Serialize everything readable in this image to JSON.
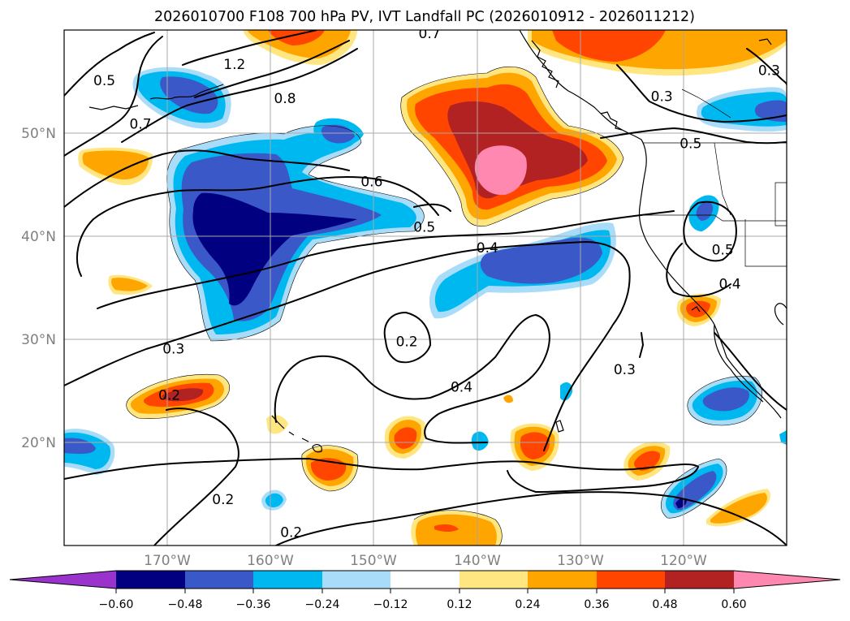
{
  "title": "2026010700 F108 700 hPa PV, IVT Landfall PC (2026010912 - 2026011212)",
  "map": {
    "lon_range": [
      -180,
      -110
    ],
    "lat_range": [
      10,
      60
    ],
    "lon_ticks": [
      {
        "lon": -170,
        "label": "170°W"
      },
      {
        "lon": -160,
        "label": "160°W"
      },
      {
        "lon": -150,
        "label": "150°W"
      },
      {
        "lon": -140,
        "label": "140°W"
      },
      {
        "lon": -130,
        "label": "130°W"
      },
      {
        "lon": -120,
        "label": "120°W"
      }
    ],
    "lat_ticks": [
      {
        "lat": 50,
        "label": "50°N"
      },
      {
        "lat": 40,
        "label": "40°N"
      },
      {
        "lat": 30,
        "label": "30°N"
      },
      {
        "lat": 20,
        "label": "20°N"
      }
    ],
    "gridlines": true
  },
  "colorbar": {
    "levels": [
      "−0.60",
      "−0.48",
      "−0.36",
      "−0.24",
      "−0.12",
      "0.12",
      "0.24",
      "0.36",
      "0.48",
      "0.60"
    ],
    "colors": {
      "under": "#9933cc",
      "m060": "#000080",
      "m048": "#3a58c8",
      "m036": "#00b8f0",
      "m024": "#a8dcf8",
      "zero": "#ffffff",
      "p012": "#ffe680",
      "p024": "#ffa500",
      "p036": "#ff4500",
      "p048": "#b22222",
      "over": "#ff88b0"
    }
  },
  "contour_labels": [
    {
      "text": "1.2",
      "lon": -163.5,
      "lat": 56.7
    },
    {
      "text": "0.7",
      "lon": -144.6,
      "lat": 59.7
    },
    {
      "text": "0.5",
      "lon": -176.1,
      "lat": 55.1
    },
    {
      "text": "0.7",
      "lon": -172.6,
      "lat": 50.9
    },
    {
      "text": "0.8",
      "lon": -158.6,
      "lat": 53.4
    },
    {
      "text": "0.3",
      "lon": -111.7,
      "lat": 56.1
    },
    {
      "text": "0.3",
      "lon": -122.1,
      "lat": 53.6
    },
    {
      "text": "0.5",
      "lon": -119.3,
      "lat": 49.0
    },
    {
      "text": "0.6",
      "lon": -150.2,
      "lat": 45.3
    },
    {
      "text": "0.5",
      "lon": -145.1,
      "lat": 40.9
    },
    {
      "text": "0.4",
      "lon": -139.0,
      "lat": 38.9
    },
    {
      "text": "0.5",
      "lon": -116.2,
      "lat": 38.7
    },
    {
      "text": "0.4",
      "lon": -115.5,
      "lat": 35.4
    },
    {
      "text": "0.2",
      "lon": -146.8,
      "lat": 29.8
    },
    {
      "text": "0.3",
      "lon": -125.7,
      "lat": 27.1
    },
    {
      "text": "0.3",
      "lon": -169.4,
      "lat": 29.1
    },
    {
      "text": "0.2",
      "lon": -169.8,
      "lat": 24.6
    },
    {
      "text": "0.4",
      "lon": -141.5,
      "lat": 25.4
    },
    {
      "text": "0.2",
      "lon": -164.6,
      "lat": 14.5
    },
    {
      "text": "0.2",
      "lon": -158.0,
      "lat": 11.3
    }
  ]
}
